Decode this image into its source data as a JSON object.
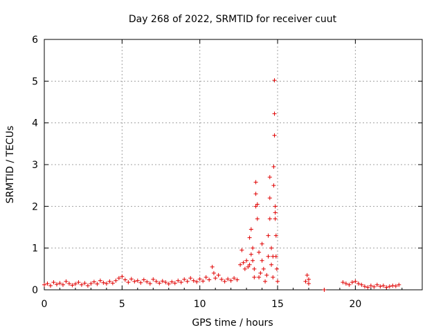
{
  "chart_data": {
    "type": "scatter",
    "title": "Day 268 of 2022, SRMTID for receiver cuut",
    "xlabel": "GPS time / hours",
    "ylabel": "SRMTID / TECUs",
    "xlim": [
      0,
      24.3
    ],
    "ylim": [
      0,
      6
    ],
    "xticks": [
      0,
      5,
      10,
      15,
      20
    ],
    "xtick_labels": [
      "0",
      "5",
      "10",
      "15",
      "20"
    ],
    "yticks": [
      0,
      1,
      2,
      3,
      4,
      5,
      6
    ],
    "ytick_labels": [
      "0",
      "1",
      "2",
      "3",
      "4",
      "5",
      "6"
    ],
    "grid": true,
    "marker": "+",
    "color": "#e00000",
    "series": [
      {
        "name": "SRMTID",
        "points": [
          [
            0.0,
            0.12
          ],
          [
            0.2,
            0.15
          ],
          [
            0.4,
            0.1
          ],
          [
            0.6,
            0.18
          ],
          [
            0.8,
            0.13
          ],
          [
            1.0,
            0.16
          ],
          [
            1.2,
            0.12
          ],
          [
            1.4,
            0.2
          ],
          [
            1.6,
            0.15
          ],
          [
            1.8,
            0.11
          ],
          [
            2.0,
            0.14
          ],
          [
            2.2,
            0.18
          ],
          [
            2.4,
            0.12
          ],
          [
            2.6,
            0.16
          ],
          [
            2.8,
            0.1
          ],
          [
            3.0,
            0.15
          ],
          [
            3.2,
            0.19
          ],
          [
            3.4,
            0.14
          ],
          [
            3.6,
            0.22
          ],
          [
            3.8,
            0.17
          ],
          [
            4.0,
            0.15
          ],
          [
            4.2,
            0.2
          ],
          [
            4.4,
            0.16
          ],
          [
            4.6,
            0.22
          ],
          [
            4.8,
            0.28
          ],
          [
            5.0,
            0.32
          ],
          [
            5.2,
            0.24
          ],
          [
            5.4,
            0.18
          ],
          [
            5.6,
            0.26
          ],
          [
            5.8,
            0.2
          ],
          [
            6.0,
            0.22
          ],
          [
            6.2,
            0.17
          ],
          [
            6.4,
            0.24
          ],
          [
            6.6,
            0.19
          ],
          [
            6.8,
            0.15
          ],
          [
            7.0,
            0.25
          ],
          [
            7.2,
            0.2
          ],
          [
            7.4,
            0.16
          ],
          [
            7.6,
            0.21
          ],
          [
            7.8,
            0.18
          ],
          [
            8.0,
            0.14
          ],
          [
            8.2,
            0.19
          ],
          [
            8.4,
            0.16
          ],
          [
            8.6,
            0.22
          ],
          [
            8.8,
            0.18
          ],
          [
            9.0,
            0.25
          ],
          [
            9.2,
            0.2
          ],
          [
            9.4,
            0.28
          ],
          [
            9.6,
            0.22
          ],
          [
            9.8,
            0.19
          ],
          [
            10.0,
            0.26
          ],
          [
            10.2,
            0.21
          ],
          [
            10.4,
            0.3
          ],
          [
            10.6,
            0.24
          ],
          [
            10.8,
            0.55
          ],
          [
            10.9,
            0.4
          ],
          [
            11.0,
            0.28
          ],
          [
            11.2,
            0.35
          ],
          [
            11.4,
            0.25
          ],
          [
            11.6,
            0.2
          ],
          [
            11.8,
            0.26
          ],
          [
            12.0,
            0.22
          ],
          [
            12.2,
            0.28
          ],
          [
            12.4,
            0.24
          ],
          [
            12.6,
            0.6
          ],
          [
            12.7,
            0.95
          ],
          [
            12.8,
            0.65
          ],
          [
            12.9,
            0.5
          ],
          [
            13.0,
            0.7
          ],
          [
            13.1,
            0.55
          ],
          [
            13.2,
            0.6
          ],
          [
            13.2,
            1.25
          ],
          [
            13.3,
            0.85
          ],
          [
            13.3,
            1.45
          ],
          [
            13.4,
            0.7
          ],
          [
            13.4,
            1.0
          ],
          [
            13.5,
            0.5
          ],
          [
            13.5,
            0.3
          ],
          [
            13.6,
            2.0
          ],
          [
            13.6,
            2.3
          ],
          [
            13.6,
            2.58
          ],
          [
            13.7,
            2.05
          ],
          [
            13.7,
            1.7
          ],
          [
            13.8,
            0.9
          ],
          [
            13.8,
            0.3
          ],
          [
            13.9,
            0.4
          ],
          [
            14.0,
            1.1
          ],
          [
            14.0,
            0.7
          ],
          [
            14.1,
            0.5
          ],
          [
            14.2,
            0.2
          ],
          [
            14.3,
            0.35
          ],
          [
            14.4,
            0.8
          ],
          [
            14.4,
            1.3
          ],
          [
            14.5,
            2.7
          ],
          [
            14.5,
            2.2
          ],
          [
            14.5,
            1.7
          ],
          [
            14.6,
            0.6
          ],
          [
            14.6,
            1.0
          ],
          [
            14.7,
            0.3
          ],
          [
            14.7,
            0.8
          ],
          [
            14.75,
            2.5
          ],
          [
            14.75,
            2.95
          ],
          [
            14.8,
            3.7
          ],
          [
            14.8,
            4.22
          ],
          [
            14.8,
            5.02
          ],
          [
            14.85,
            2.0
          ],
          [
            14.85,
            1.85
          ],
          [
            14.85,
            1.7
          ],
          [
            14.9,
            1.3
          ],
          [
            14.9,
            0.8
          ],
          [
            14.95,
            0.5
          ],
          [
            15.0,
            0.2
          ],
          [
            16.8,
            0.2
          ],
          [
            16.9,
            0.35
          ],
          [
            17.0,
            0.15
          ],
          [
            17.0,
            0.25
          ],
          [
            18.0,
            0.0
          ],
          [
            19.2,
            0.18
          ],
          [
            19.4,
            0.15
          ],
          [
            19.6,
            0.12
          ],
          [
            19.8,
            0.18
          ],
          [
            20.0,
            0.2
          ],
          [
            20.2,
            0.15
          ],
          [
            20.4,
            0.12
          ],
          [
            20.6,
            0.08
          ],
          [
            20.8,
            0.06
          ],
          [
            21.0,
            0.1
          ],
          [
            21.2,
            0.07
          ],
          [
            21.4,
            0.12
          ],
          [
            21.6,
            0.08
          ],
          [
            21.8,
            0.1
          ],
          [
            22.0,
            0.06
          ],
          [
            22.2,
            0.08
          ],
          [
            22.4,
            0.1
          ],
          [
            22.6,
            0.09
          ],
          [
            22.8,
            0.12
          ]
        ]
      }
    ]
  }
}
